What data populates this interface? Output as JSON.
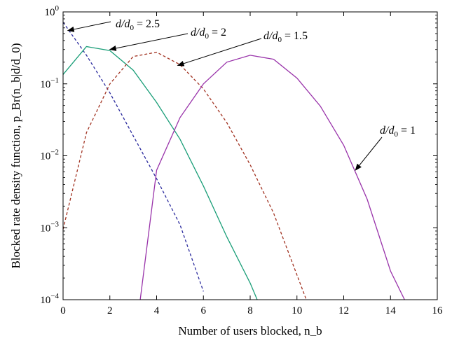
{
  "chart_data": {
    "type": "line",
    "xlabel": "Number of users blocked, n_b",
    "ylabel": "Blocked rate density function, p_Br(n_b|d/d_0)",
    "xlim": [
      0,
      16
    ],
    "ylim": [
      0.0001,
      1
    ],
    "yscale": "log",
    "grid": false,
    "xticks": [
      "0",
      "2",
      "4",
      "6",
      "8",
      "10",
      "12",
      "14",
      "16"
    ],
    "yticks": [
      {
        "base": "10",
        "exp": "0"
      },
      {
        "base": "10",
        "exp": "−1"
      },
      {
        "base": "10",
        "exp": "−2"
      },
      {
        "base": "10",
        "exp": "−3"
      },
      {
        "base": "10",
        "exp": "−4"
      }
    ],
    "series": [
      {
        "name": "d/d0 = 2.5",
        "color": "#2b2b9e",
        "dash": "dashed",
        "x": [
          0,
          1,
          2,
          3,
          4,
          5,
          6
        ],
        "y": [
          0.72,
          0.25,
          0.075,
          0.019,
          0.0048,
          0.0011,
          0.00013
        ]
      },
      {
        "name": "d/d0 = 2",
        "color": "#1a9e78",
        "dash": "solid",
        "x": [
          0,
          1,
          2,
          3,
          4,
          5,
          6,
          7,
          8,
          8.3
        ],
        "y": [
          0.135,
          0.33,
          0.29,
          0.155,
          0.055,
          0.017,
          0.0038,
          0.00075,
          0.00017,
          0.0001
        ]
      },
      {
        "name": "d/d0 = 1.5",
        "color": "#a23322",
        "dash": "dashed",
        "x": [
          0,
          1,
          2,
          3,
          4,
          5,
          6,
          7,
          8,
          9,
          10,
          10.4
        ],
        "y": [
          0.00095,
          0.021,
          0.1,
          0.24,
          0.275,
          0.185,
          0.085,
          0.029,
          0.0075,
          0.0016,
          0.00022,
          0.0001
        ]
      },
      {
        "name": "d/d0 = 1",
        "color": "#9933aa",
        "dash": "solid",
        "x": [
          3.3,
          4,
          5,
          6,
          7,
          8,
          9,
          10,
          11,
          12,
          13,
          14,
          14.6
        ],
        "y": [
          0.0001,
          0.0063,
          0.034,
          0.1,
          0.2,
          0.25,
          0.22,
          0.12,
          0.049,
          0.014,
          0.0025,
          0.00025,
          0.0001
        ]
      }
    ],
    "annotations": [
      {
        "ratio": "d/d",
        "sub": "0",
        "value": " = 2.5",
        "target_x": 0.2,
        "target_y": 0.55
      },
      {
        "ratio": "d/d",
        "sub": "0",
        "value": " = 2",
        "target_x": 2.0,
        "target_y": 0.3
      },
      {
        "ratio": "d/d",
        "sub": "0",
        "value": " = 1.5",
        "target_x": 4.9,
        "target_y": 0.18
      },
      {
        "ratio": "d/d",
        "sub": "0",
        "value": " = 1",
        "target_x": 12.5,
        "target_y": 0.0063
      }
    ]
  }
}
